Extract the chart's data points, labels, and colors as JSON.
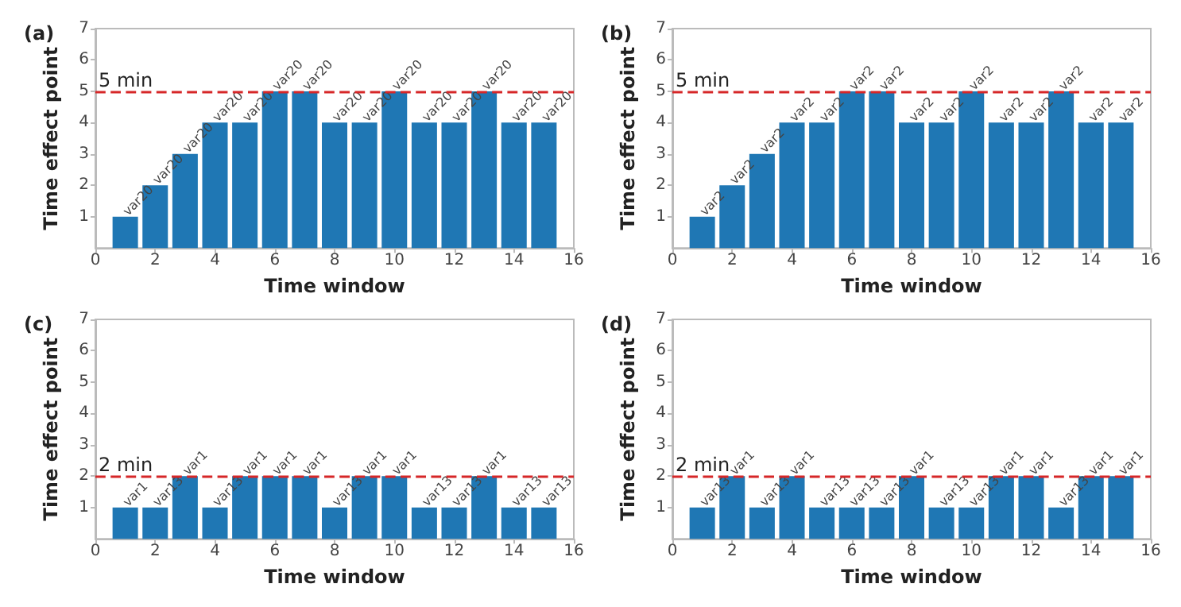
{
  "chart_data": [
    {
      "type": "bar",
      "title": "(a)",
      "xlabel": "Time window",
      "ylabel": "Time effect point",
      "x": [
        1,
        2,
        3,
        4,
        5,
        6,
        7,
        8,
        9,
        10,
        11,
        12,
        13,
        14,
        15
      ],
      "values": [
        1,
        2,
        3,
        4,
        4,
        5,
        5,
        4,
        4,
        5,
        4,
        4,
        5,
        4,
        4
      ],
      "color": "#1f77b4",
      "value_labels": [
        "var20",
        "var20",
        "var20",
        "var20",
        "var20",
        "var20",
        "var20",
        "var20",
        "var20",
        "var20",
        "var20",
        "var20",
        "var20",
        "var20",
        "var20"
      ],
      "xlim": [
        0,
        16
      ],
      "xticks": [
        0,
        2,
        4,
        6,
        8,
        10,
        12,
        14,
        16
      ],
      "ylim": [
        0,
        7
      ],
      "yticks": [
        1,
        2,
        3,
        4,
        5,
        6,
        7
      ],
      "ref_lines": [
        {
          "axis": "y",
          "value": 5,
          "label": "5 min",
          "color": "#d62728",
          "line_style": "dashed"
        }
      ],
      "grid": false
    },
    {
      "type": "bar",
      "title": "(b)",
      "xlabel": "Time window",
      "ylabel": "Time effect point",
      "x": [
        1,
        2,
        3,
        4,
        5,
        6,
        7,
        8,
        9,
        10,
        11,
        12,
        13,
        14,
        15
      ],
      "values": [
        1,
        2,
        3,
        4,
        4,
        5,
        5,
        4,
        4,
        5,
        4,
        4,
        5,
        4,
        4
      ],
      "color": "#1f77b4",
      "value_labels": [
        "var2",
        "var2",
        "var2",
        "var2",
        "var2",
        "var2",
        "var2",
        "var2",
        "var2",
        "var2",
        "var2",
        "var2",
        "var2",
        "var2",
        "var2"
      ],
      "xlim": [
        0,
        16
      ],
      "xticks": [
        0,
        2,
        4,
        6,
        8,
        10,
        12,
        14,
        16
      ],
      "ylim": [
        0,
        7
      ],
      "yticks": [
        1,
        2,
        3,
        4,
        5,
        6,
        7
      ],
      "ref_lines": [
        {
          "axis": "y",
          "value": 5,
          "label": "5 min",
          "color": "#d62728",
          "line_style": "dashed"
        }
      ],
      "grid": false
    },
    {
      "type": "bar",
      "title": "(c)",
      "xlabel": "Time window",
      "ylabel": "Time effect point",
      "x": [
        1,
        2,
        3,
        4,
        5,
        6,
        7,
        8,
        9,
        10,
        11,
        12,
        13,
        14,
        15
      ],
      "values": [
        1,
        1,
        2,
        1,
        2,
        2,
        2,
        1,
        2,
        2,
        1,
        1,
        2,
        1,
        1
      ],
      "color": "#1f77b4",
      "value_labels": [
        "var1",
        "var13",
        "var1",
        "var13",
        "var1",
        "var1",
        "var1",
        "var13",
        "var1",
        "var1",
        "var13",
        "var13",
        "var1",
        "var13",
        "var13"
      ],
      "xlim": [
        0,
        16
      ],
      "xticks": [
        0,
        2,
        4,
        6,
        8,
        10,
        12,
        14,
        16
      ],
      "ylim": [
        0,
        7
      ],
      "yticks": [
        1,
        2,
        3,
        4,
        5,
        6,
        7
      ],
      "ref_lines": [
        {
          "axis": "y",
          "value": 2,
          "label": "2 min",
          "color": "#d62728",
          "line_style": "dashed"
        }
      ],
      "grid": false
    },
    {
      "type": "bar",
      "title": "(d)",
      "xlabel": "Time window",
      "ylabel": "Time effect point",
      "x": [
        1,
        2,
        3,
        4,
        5,
        6,
        7,
        8,
        9,
        10,
        11,
        12,
        13,
        14,
        15
      ],
      "values": [
        1,
        2,
        1,
        2,
        1,
        1,
        1,
        2,
        1,
        1,
        2,
        2,
        1,
        2,
        2
      ],
      "color": "#1f77b4",
      "value_labels": [
        "var13",
        "var1",
        "var13",
        "var1",
        "var13",
        "var13",
        "var13",
        "var1",
        "var13",
        "var13",
        "var1",
        "var1",
        "var13",
        "var1",
        "var1"
      ],
      "xlim": [
        0,
        16
      ],
      "xticks": [
        0,
        2,
        4,
        6,
        8,
        10,
        12,
        14,
        16
      ],
      "ylim": [
        0,
        7
      ],
      "yticks": [
        1,
        2,
        3,
        4,
        5,
        6,
        7
      ],
      "ref_lines": [
        {
          "axis": "y",
          "value": 2,
          "label": "2 min",
          "color": "#d62728",
          "line_style": "dashed"
        }
      ],
      "grid": false
    }
  ]
}
